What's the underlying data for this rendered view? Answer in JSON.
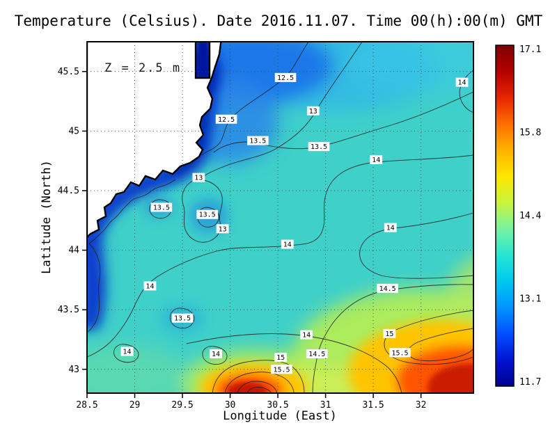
{
  "chart_data": {
    "type": "heatmap",
    "title": "Temperature (Celsius). Date 2016.11.07. Time 00(h):00(m) GMT",
    "xlabel": "Longitude (East)",
    "ylabel": "Latitude (North)",
    "annotation": "Z = 2.5 m",
    "x_ticks": [
      28.5,
      29,
      29.5,
      30,
      30.5,
      31,
      31.5,
      32
    ],
    "y_ticks": [
      43,
      43.5,
      44,
      44.5,
      45,
      45.5
    ],
    "xlim": [
      28.5,
      32.55
    ],
    "ylim": [
      42.8,
      45.75
    ],
    "grid": true,
    "contour_interval": 0.5,
    "contour_levels": [
      12.5,
      13,
      13.5,
      14,
      14.5,
      15,
      15.5
    ],
    "colorbar": {
      "position": "right",
      "min": 11.7,
      "max": 17.1,
      "tick_labels": [
        "17.1",
        "15.8",
        "14.4",
        "13.1",
        "11.7"
      ],
      "palette_top_to_bottom": [
        "#7f0000",
        "#b40000",
        "#e62600",
        "#ff6e00",
        "#ffb200",
        "#ffe600",
        "#c8f43c",
        "#78f2a0",
        "#28e6d2",
        "#00c8f0",
        "#0096ff",
        "#0050ff",
        "#0014d2",
        "#00008f"
      ]
    },
    "contour_labels": [
      {
        "value": "12.5",
        "lon": 30.58,
        "lat": 45.45
      },
      {
        "value": "13",
        "lon": 30.87,
        "lat": 45.17
      },
      {
        "value": "14",
        "lon": 32.43,
        "lat": 45.41
      },
      {
        "value": "12.5",
        "lon": 29.96,
        "lat": 45.1
      },
      {
        "value": "13.5",
        "lon": 30.29,
        "lat": 44.92
      },
      {
        "value": "13.5",
        "lon": 30.93,
        "lat": 44.87
      },
      {
        "value": "14",
        "lon": 31.53,
        "lat": 44.76
      },
      {
        "value": "13",
        "lon": 29.67,
        "lat": 44.61
      },
      {
        "value": "13.5",
        "lon": 29.28,
        "lat": 44.36
      },
      {
        "value": "13.5",
        "lon": 29.76,
        "lat": 44.3
      },
      {
        "value": "13",
        "lon": 29.92,
        "lat": 44.18
      },
      {
        "value": "14",
        "lon": 31.68,
        "lat": 44.19
      },
      {
        "value": "14",
        "lon": 30.6,
        "lat": 44.05
      },
      {
        "value": "14",
        "lon": 29.16,
        "lat": 43.7
      },
      {
        "value": "14.5",
        "lon": 31.65,
        "lat": 43.68
      },
      {
        "value": "13.5",
        "lon": 29.5,
        "lat": 43.43
      },
      {
        "value": "15",
        "lon": 31.67,
        "lat": 43.3
      },
      {
        "value": "14",
        "lon": 30.8,
        "lat": 43.29
      },
      {
        "value": "15.5",
        "lon": 31.78,
        "lat": 43.14
      },
      {
        "value": "14",
        "lon": 28.92,
        "lat": 43.15
      },
      {
        "value": "14",
        "lon": 29.85,
        "lat": 43.13
      },
      {
        "value": "14.5",
        "lon": 30.91,
        "lat": 43.13
      },
      {
        "value": "15",
        "lon": 30.53,
        "lat": 43.1
      },
      {
        "value": "15.5",
        "lon": 30.54,
        "lat": 43.0
      }
    ],
    "description": "Sea temperature at 2.5 m depth over the western Black Sea: cold water (12-13 C) along the northwest coast, 13.5-14.5 C over the open sea, warm cores above 15.5 C in the south and southeast."
  }
}
